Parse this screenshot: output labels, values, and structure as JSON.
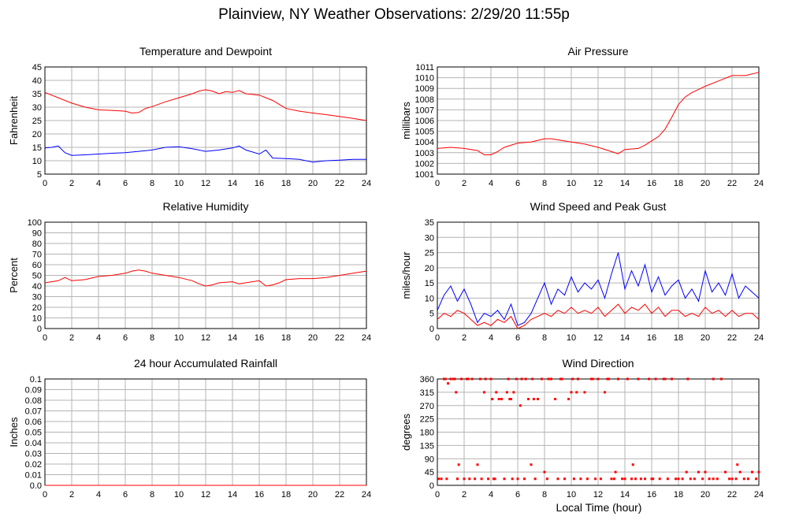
{
  "page": {
    "title": "Plainview, NY Weather Observations: 2/29/20 11:55p",
    "x_axis_title": "Local Time (hour)"
  },
  "chart_data": [
    {
      "type": "line",
      "title": "Temperature and Dewpoint",
      "xlabel": "",
      "ylabel": "Fahrenheit",
      "xlim": [
        0,
        24
      ],
      "ylim": [
        5,
        45
      ],
      "xticks": [
        0,
        2,
        4,
        6,
        8,
        10,
        12,
        14,
        16,
        18,
        20,
        22,
        24
      ],
      "yticks": [
        5,
        10,
        15,
        20,
        25,
        30,
        35,
        40,
        45
      ],
      "grid": true,
      "series": [
        {
          "color": "#ff0000",
          "x": [
            0,
            1,
            2,
            3,
            4,
            5,
            6,
            6.5,
            7,
            7.5,
            8,
            9,
            10,
            11,
            11.5,
            12,
            12.5,
            13,
            13.5,
            14,
            14.5,
            15,
            16,
            16.5,
            17,
            17.5,
            18,
            19,
            20,
            21,
            22,
            23,
            24
          ],
          "y": [
            35.5,
            33.5,
            31.5,
            30,
            29,
            28.8,
            28.5,
            27.8,
            28,
            29.5,
            30.2,
            32,
            33.5,
            35,
            36,
            36.5,
            36,
            35,
            35.8,
            35.5,
            36.2,
            35,
            34.5,
            33.5,
            32.5,
            31,
            29.5,
            28.5,
            27.8,
            27.2,
            26.5,
            25.8,
            25
          ]
        },
        {
          "color": "#0000ff",
          "x": [
            0,
            0.5,
            1,
            1.5,
            2,
            3,
            4,
            5,
            6,
            7,
            8,
            9,
            10,
            11,
            12,
            13,
            14,
            14.5,
            15,
            16,
            16.5,
            17,
            18,
            19,
            20,
            21,
            22,
            23,
            24
          ],
          "y": [
            14.8,
            15,
            15.5,
            13,
            12,
            12.2,
            12.5,
            12.8,
            13,
            13.5,
            14,
            15,
            15.2,
            14.5,
            13.5,
            14,
            14.8,
            15.5,
            14,
            12.5,
            14,
            11,
            10.8,
            10.5,
            9.5,
            10,
            10.2,
            10.5,
            10.5
          ]
        }
      ]
    },
    {
      "type": "line",
      "title": "Air Pressure",
      "xlabel": "",
      "ylabel": "millibars",
      "xlim": [
        0,
        24
      ],
      "ylim": [
        1001,
        1011
      ],
      "xticks": [
        0,
        2,
        4,
        6,
        8,
        10,
        12,
        14,
        16,
        18,
        20,
        22,
        24
      ],
      "yticks": [
        1001,
        1002,
        1003,
        1004,
        1005,
        1006,
        1007,
        1008,
        1009,
        1010,
        1011
      ],
      "grid": true,
      "series": [
        {
          "color": "#ff0000",
          "x": [
            0,
            1,
            2,
            3,
            3.5,
            4,
            4.5,
            5,
            6,
            7,
            8,
            8.5,
            9,
            10,
            11,
            12,
            13,
            13.5,
            14,
            15,
            15.5,
            16,
            16.5,
            17,
            17.5,
            18,
            18.5,
            19,
            20,
            21,
            22,
            23,
            24
          ],
          "y": [
            1003.4,
            1003.5,
            1003.4,
            1003.2,
            1002.8,
            1002.8,
            1003.1,
            1003.5,
            1003.9,
            1004.0,
            1004.3,
            1004.3,
            1004.2,
            1004.0,
            1003.8,
            1003.5,
            1003.1,
            1002.9,
            1003.3,
            1003.4,
            1003.7,
            1004.1,
            1004.5,
            1005.2,
            1006.3,
            1007.5,
            1008.2,
            1008.6,
            1009.2,
            1009.7,
            1010.2,
            1010.2,
            1010.5
          ]
        }
      ]
    },
    {
      "type": "line",
      "title": "Relative Humidity",
      "xlabel": "",
      "ylabel": "Percent",
      "xlim": [
        0,
        24
      ],
      "ylim": [
        0,
        100
      ],
      "xticks": [
        0,
        2,
        4,
        6,
        8,
        10,
        12,
        14,
        16,
        18,
        20,
        22,
        24
      ],
      "yticks": [
        0,
        10,
        20,
        30,
        40,
        50,
        60,
        70,
        80,
        90,
        100
      ],
      "grid": true,
      "series": [
        {
          "color": "#ff0000",
          "x": [
            0,
            0.5,
            1,
            1.5,
            2,
            3,
            4,
            5,
            6,
            6.5,
            7,
            7.5,
            8,
            9,
            10,
            11,
            11.5,
            12,
            12.5,
            13,
            14,
            14.5,
            15,
            16,
            16.5,
            17,
            17.5,
            18,
            19,
            20,
            21,
            22,
            23,
            24
          ],
          "y": [
            43,
            44,
            45,
            48,
            45,
            46,
            49,
            50,
            52,
            54,
            55,
            54,
            52,
            50,
            48,
            45,
            42,
            40,
            41,
            43,
            44,
            42,
            43,
            45,
            40,
            41,
            43,
            46,
            47,
            47,
            48,
            50,
            52,
            54
          ]
        }
      ]
    },
    {
      "type": "line",
      "title": "Wind Speed and Peak Gust",
      "xlabel": "",
      "ylabel": "miles/hour",
      "xlim": [
        0,
        24
      ],
      "ylim": [
        0,
        35
      ],
      "xticks": [
        0,
        2,
        4,
        6,
        8,
        10,
        12,
        14,
        16,
        18,
        20,
        22,
        24
      ],
      "yticks": [
        0,
        5,
        10,
        15,
        20,
        25,
        30,
        35
      ],
      "grid": true,
      "series": [
        {
          "color": "#0000ff",
          "x": [
            0,
            0.5,
            1,
            1.5,
            2,
            2.5,
            3,
            3.5,
            4,
            4.5,
            5,
            5.5,
            6,
            6.5,
            7,
            7.5,
            8,
            8.5,
            9,
            9.5,
            10,
            10.5,
            11,
            11.5,
            12,
            12.5,
            13,
            13.5,
            14,
            14.5,
            15,
            15.5,
            16,
            16.5,
            17,
            17.5,
            18,
            18.5,
            19,
            19.5,
            20,
            20.5,
            21,
            21.5,
            22,
            22.5,
            23,
            23.5,
            24
          ],
          "y": [
            6,
            11,
            14,
            9,
            13,
            8,
            2,
            5,
            4,
            6,
            3,
            8,
            1,
            2,
            5,
            10,
            15,
            8,
            13,
            11,
            17,
            12,
            15,
            13,
            16,
            10,
            18,
            25,
            13,
            19,
            14,
            21,
            12,
            17,
            11,
            14,
            16,
            10,
            13,
            9,
            19,
            12,
            15,
            11,
            18,
            10,
            14,
            12,
            10
          ]
        },
        {
          "color": "#ff0000",
          "x": [
            0,
            0.5,
            1,
            1.5,
            2,
            2.5,
            3,
            3.5,
            4,
            4.5,
            5,
            5.5,
            6,
            6.5,
            7,
            7.5,
            8,
            8.5,
            9,
            9.5,
            10,
            10.5,
            11,
            11.5,
            12,
            12.5,
            13,
            13.5,
            14,
            14.5,
            15,
            15.5,
            16,
            16.5,
            17,
            17.5,
            18,
            18.5,
            19,
            19.5,
            20,
            20.5,
            21,
            21.5,
            22,
            22.5,
            23,
            23.5,
            24
          ],
          "y": [
            3,
            5,
            4,
            6,
            5,
            3,
            1,
            2,
            1,
            3,
            2,
            4,
            0,
            1,
            3,
            4,
            5,
            4,
            6,
            5,
            7,
            5,
            6,
            5,
            7,
            4,
            6,
            8,
            5,
            7,
            6,
            8,
            5,
            7,
            4,
            6,
            6,
            4,
            5,
            4,
            7,
            5,
            6,
            4,
            6,
            4,
            5,
            5,
            3
          ]
        }
      ]
    },
    {
      "type": "line",
      "title": "24 hour Accumulated Rainfall",
      "xlabel": "",
      "ylabel": "Inches",
      "xlim": [
        0,
        24
      ],
      "ylim": [
        0,
        0.1
      ],
      "xticks": [
        0,
        2,
        4,
        6,
        8,
        10,
        12,
        14,
        16,
        18,
        20,
        22,
        24
      ],
      "yticks": [
        "0.0",
        "0.01",
        "0.02",
        "0.03",
        "0.04",
        "0.05",
        "0.06",
        "0.07",
        "0.08",
        "0.09",
        "0.1"
      ],
      "grid": true,
      "series": [
        {
          "color": "#ff0000",
          "x": [
            0,
            24
          ],
          "y": [
            0,
            0
          ]
        }
      ]
    },
    {
      "type": "scatter",
      "title": "Wind Direction",
      "xlabel": "Local Time (hour)",
      "ylabel": "degrees",
      "xlim": [
        0,
        24
      ],
      "ylim": [
        0,
        360
      ],
      "xticks": [
        0,
        2,
        4,
        6,
        8,
        10,
        12,
        14,
        16,
        18,
        20,
        22,
        24
      ],
      "yticks": [
        0,
        45,
        90,
        135,
        180,
        225,
        270,
        315,
        360
      ],
      "grid": true,
      "series": [
        {
          "color": "#ff0000",
          "x": [
            0.1,
            0.3,
            0.5,
            0.7,
            0.8,
            1.0,
            1.2,
            1.4,
            1.5,
            1.6,
            1.8,
            2.0,
            2.2,
            2.4,
            2.6,
            2.8,
            3.0,
            3.2,
            3.3,
            3.5,
            3.8,
            4.0,
            4.1,
            4.2,
            4.4,
            4.6,
            4.8,
            5.0,
            5.2,
            5.4,
            5.5,
            5.6,
            5.7,
            6.0,
            6.2,
            6.3,
            6.5,
            6.8,
            7.0,
            7.2,
            7.3,
            7.5,
            7.8,
            8.0,
            8.2,
            8.5,
            8.8,
            9.0,
            9.2,
            9.5,
            9.8,
            10.0,
            10.2,
            10.4,
            10.5,
            10.7,
            11.0,
            11.2,
            11.5,
            11.8,
            12.0,
            12.2,
            12.5,
            12.8,
            13.0,
            13.2,
            13.5,
            13.8,
            14.0,
            14.2,
            14.5,
            14.8,
            15.0,
            15.2,
            15.5,
            15.8,
            16.0,
            16.3,
            16.6,
            16.9,
            17.2,
            17.5,
            17.8,
            18.0,
            18.3,
            18.6,
            18.9,
            19.2,
            19.5,
            19.8,
            20.0,
            20.3,
            20.6,
            20.9,
            21.2,
            21.5,
            21.8,
            22.0,
            22.3,
            22.6,
            22.9,
            23.2,
            23.5,
            23.8,
            24.0,
            0.6,
            1.3,
            2.3,
            3.6,
            4.3,
            5.3,
            5.9,
            6.6,
            7.1,
            8.3,
            9.3,
            10.1,
            11.6,
            12.7,
            13.3,
            14.6,
            16.1,
            17.0,
            18.7,
            20.6,
            22.4
          ],
          "y": [
            22,
            22,
            360,
            22,
            345,
            360,
            360,
            315,
            22,
            70,
            360,
            22,
            360,
            22,
            360,
            22,
            70,
            360,
            22,
            315,
            22,
            360,
            292,
            22,
            315,
            292,
            292,
            22,
            315,
            292,
            292,
            22,
            315,
            22,
            270,
            360,
            22,
            292,
            70,
            292,
            22,
            292,
            360,
            45,
            22,
            360,
            292,
            22,
            360,
            22,
            292,
            315,
            22,
            315,
            360,
            22,
            315,
            22,
            360,
            22,
            360,
            22,
            315,
            360,
            22,
            22,
            360,
            22,
            22,
            360,
            22,
            22,
            360,
            22,
            22,
            360,
            22,
            360,
            22,
            360,
            22,
            360,
            22,
            22,
            22,
            45,
            22,
            22,
            45,
            22,
            45,
            22,
            360,
            22,
            360,
            45,
            22,
            22,
            22,
            45,
            22,
            22,
            45,
            22,
            45,
            360,
            360,
            360,
            360,
            22,
            360,
            360,
            360,
            360,
            360,
            360,
            360,
            360,
            360,
            45,
            70,
            22,
            360,
            360,
            22,
            70
          ]
        }
      ]
    }
  ]
}
